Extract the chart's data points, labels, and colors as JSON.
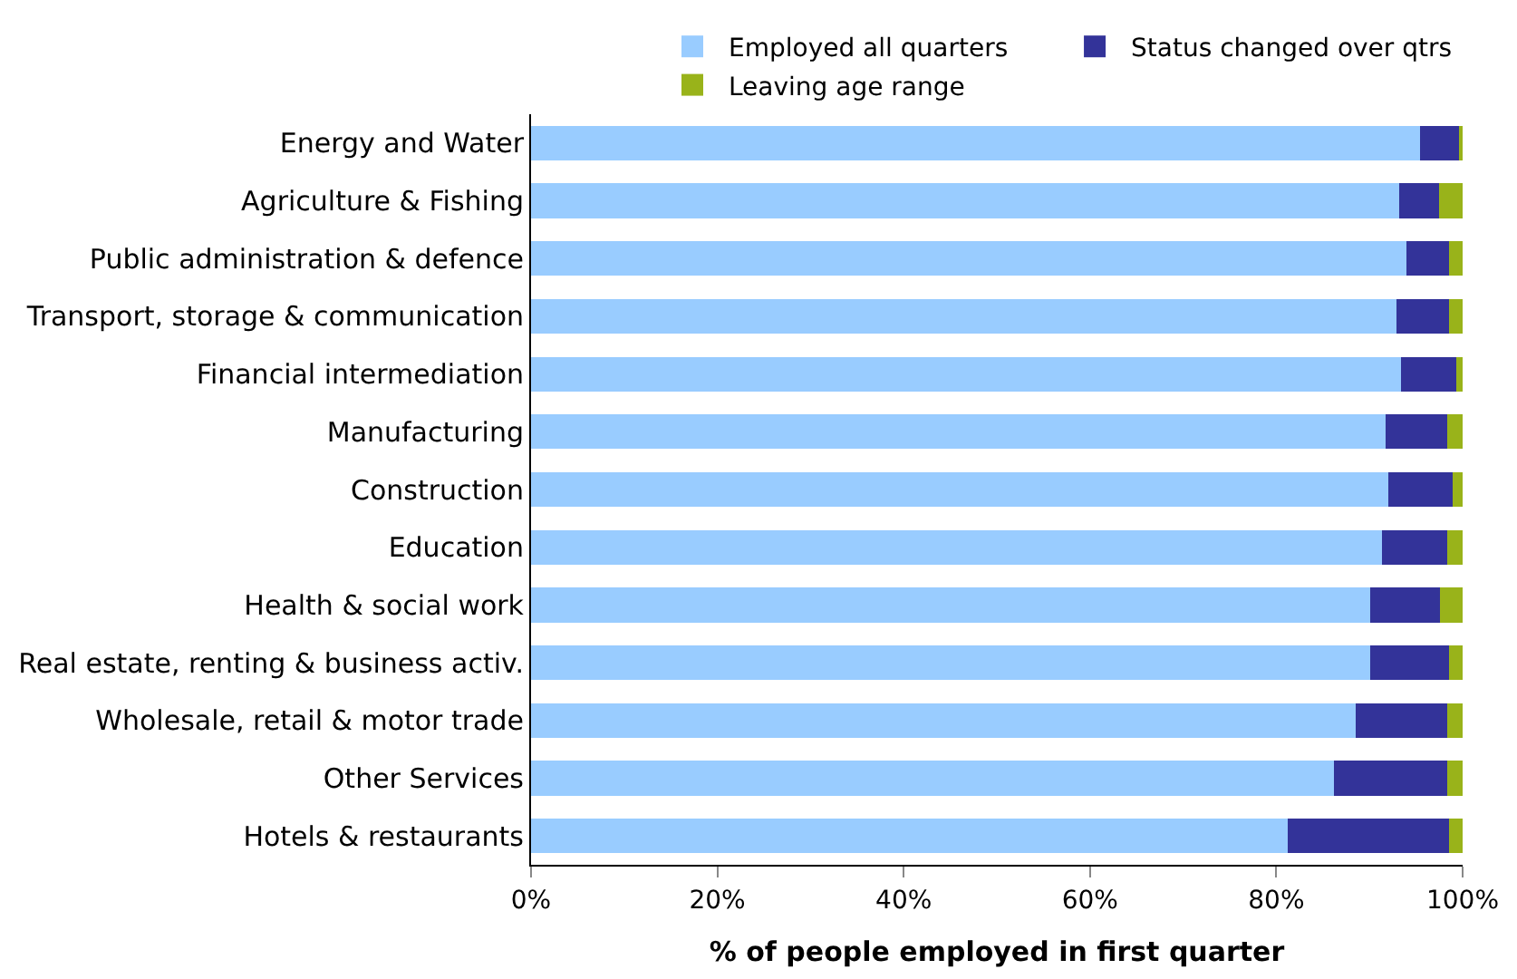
{
  "chart_data": {
    "type": "bar",
    "orientation": "horizontal",
    "stacked": true,
    "xlabel": "% of people employed in first quarter",
    "categories": [
      "Energy and Water",
      "Agriculture & Fishing",
      "Public administration & defence",
      "Transport, storage & communication",
      "Financial intermediation",
      "Manufacturing",
      "Construction",
      "Education",
      "Health & social work",
      "Real estate, renting & business activ.",
      "Wholesale, retail & motor trade",
      "Other Services",
      "Hotels & restaurants"
    ],
    "series": [
      {
        "name": "Employed all quarters",
        "color": "#99ccff",
        "values": [
          95.4,
          93.2,
          94.0,
          92.9,
          93.4,
          91.7,
          92.0,
          91.3,
          90.1,
          90.1,
          88.5,
          86.2,
          81.2
        ]
      },
      {
        "name": "Status changed over qtrs",
        "color": "#333399",
        "values": [
          4.2,
          4.3,
          4.5,
          5.6,
          5.9,
          6.6,
          6.9,
          7.0,
          7.5,
          8.4,
          9.8,
          12.1,
          17.3
        ]
      },
      {
        "name": "Leaving age range",
        "color": "#99b31a",
        "values": [
          0.4,
          2.5,
          1.5,
          1.5,
          0.7,
          1.7,
          1.1,
          1.7,
          2.4,
          1.5,
          1.7,
          1.7,
          1.5
        ]
      }
    ],
    "xlim": [
      0,
      100
    ],
    "xticks": [
      {
        "value": 0,
        "label": "0%"
      },
      {
        "value": 20,
        "label": "20%"
      },
      {
        "value": 40,
        "label": "40%"
      },
      {
        "value": 60,
        "label": "60%"
      },
      {
        "value": 80,
        "label": "80%"
      },
      {
        "value": 100,
        "label": "100%"
      }
    ],
    "legend": "top"
  }
}
